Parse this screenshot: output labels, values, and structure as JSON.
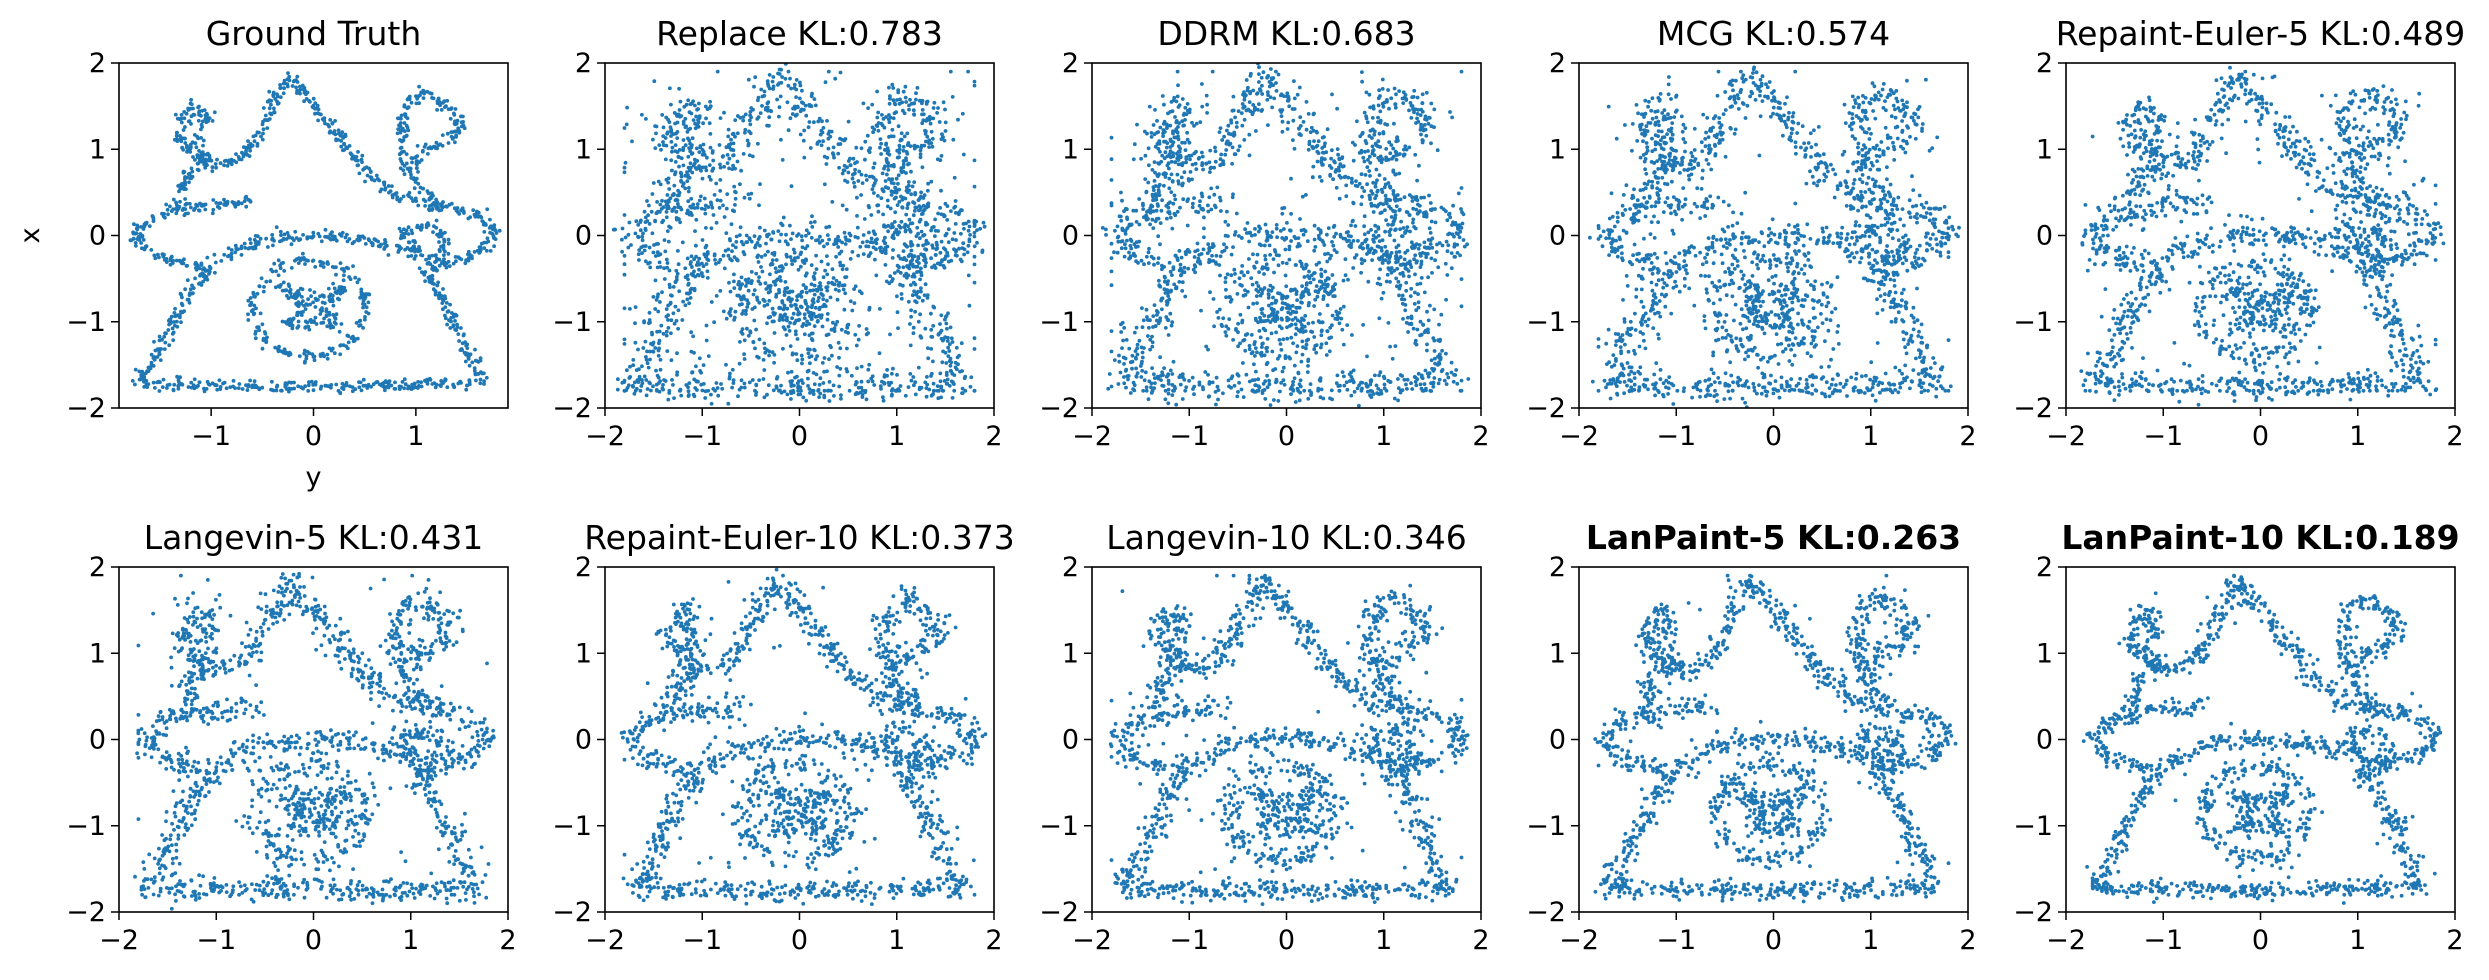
{
  "chart_data": [
    {
      "type": "scatter",
      "title": "Ground Truth",
      "kl": null,
      "bold": false,
      "xlabel": "y",
      "ylabel": "x",
      "xlim": [
        -1.9,
        1.9
      ],
      "ylim": [
        -2,
        2
      ],
      "xticks": [
        -1,
        0,
        1
      ],
      "yticks": [
        -2,
        -1,
        0,
        1,
        2
      ],
      "xtick_labels": [
        "−1",
        "0",
        "1"
      ],
      "ytick_labels": [
        "−2",
        "−1",
        "0",
        "1",
        "2"
      ],
      "noise": 0.0,
      "color": "#1f77b4"
    },
    {
      "type": "scatter",
      "title": "Replace  KL:0.783",
      "kl": 0.783,
      "bold": false,
      "xlabel": "",
      "ylabel": "",
      "xlim": [
        -2,
        2
      ],
      "ylim": [
        -2,
        2
      ],
      "xticks": [
        -2,
        -1,
        0,
        1,
        2
      ],
      "yticks": [
        -2,
        -1,
        0,
        1,
        2
      ],
      "xtick_labels": [
        "−2",
        "−1",
        "0",
        "1",
        "2"
      ],
      "ytick_labels": [
        "−2",
        "−1",
        "0",
        "1",
        "2"
      ],
      "noise": 0.78,
      "color": "#1f77b4"
    },
    {
      "type": "scatter",
      "title": "DDRM  KL:0.683",
      "kl": 0.683,
      "bold": false,
      "xlabel": "",
      "ylabel": "",
      "xlim": [
        -2,
        2
      ],
      "ylim": [
        -2,
        2
      ],
      "xticks": [
        -2,
        -1,
        0,
        1,
        2
      ],
      "yticks": [
        -2,
        -1,
        0,
        1,
        2
      ],
      "xtick_labels": [
        "−2",
        "−1",
        "0",
        "1",
        "2"
      ],
      "ytick_labels": [
        "−2",
        "−1",
        "0",
        "1",
        "2"
      ],
      "noise": 0.68,
      "color": "#1f77b4"
    },
    {
      "type": "scatter",
      "title": "MCG  KL:0.574",
      "kl": 0.574,
      "bold": false,
      "xlabel": "",
      "ylabel": "",
      "xlim": [
        -2,
        2
      ],
      "ylim": [
        -2,
        2
      ],
      "xticks": [
        -2,
        -1,
        0,
        1,
        2
      ],
      "yticks": [
        -2,
        -1,
        0,
        1,
        2
      ],
      "xtick_labels": [
        "−2",
        "−1",
        "0",
        "1",
        "2"
      ],
      "ytick_labels": [
        "−2",
        "−1",
        "0",
        "1",
        "2"
      ],
      "noise": 0.57,
      "color": "#1f77b4"
    },
    {
      "type": "scatter",
      "title": "Repaint-Euler-5  KL:0.489",
      "kl": 0.489,
      "bold": false,
      "xlabel": "",
      "ylabel": "",
      "xlim": [
        -2,
        2
      ],
      "ylim": [
        -2,
        2
      ],
      "xticks": [
        -2,
        -1,
        0,
        1,
        2
      ],
      "yticks": [
        -2,
        -1,
        0,
        1,
        2
      ],
      "xtick_labels": [
        "−2",
        "−1",
        "0",
        "1",
        "2"
      ],
      "ytick_labels": [
        "−2",
        "−1",
        "0",
        "1",
        "2"
      ],
      "noise": 0.49,
      "color": "#1f77b4"
    },
    {
      "type": "scatter",
      "title": "Langevin-5  KL:0.431",
      "kl": 0.431,
      "bold": false,
      "xlabel": "",
      "ylabel": "",
      "xlim": [
        -2,
        2
      ],
      "ylim": [
        -2,
        2
      ],
      "xticks": [
        -2,
        -1,
        0,
        1,
        2
      ],
      "yticks": [
        -2,
        -1,
        0,
        1,
        2
      ],
      "xtick_labels": [
        "−2",
        "−1",
        "0",
        "1",
        "2"
      ],
      "ytick_labels": [
        "−2",
        "−1",
        "0",
        "1",
        "2"
      ],
      "noise": 0.43,
      "color": "#1f77b4"
    },
    {
      "type": "scatter",
      "title": "Repaint-Euler-10  KL:0.373",
      "kl": 0.373,
      "bold": false,
      "xlabel": "",
      "ylabel": "",
      "xlim": [
        -2,
        2
      ],
      "ylim": [
        -2,
        2
      ],
      "xticks": [
        -2,
        -1,
        0,
        1,
        2
      ],
      "yticks": [
        -2,
        -1,
        0,
        1,
        2
      ],
      "xtick_labels": [
        "−2",
        "−1",
        "0",
        "1",
        "2"
      ],
      "ytick_labels": [
        "−2",
        "−1",
        "0",
        "1",
        "2"
      ],
      "noise": 0.37,
      "color": "#1f77b4"
    },
    {
      "type": "scatter",
      "title": "Langevin-10  KL:0.346",
      "kl": 0.346,
      "bold": false,
      "xlabel": "",
      "ylabel": "",
      "xlim": [
        -2,
        2
      ],
      "ylim": [
        -2,
        2
      ],
      "xticks": [
        -2,
        -1,
        0,
        1,
        2
      ],
      "yticks": [
        -2,
        -1,
        0,
        1,
        2
      ],
      "xtick_labels": [
        "−2",
        "−1",
        "0",
        "1",
        "2"
      ],
      "ytick_labels": [
        "−2",
        "−1",
        "0",
        "1",
        "2"
      ],
      "noise": 0.35,
      "color": "#1f77b4"
    },
    {
      "type": "scatter",
      "title": "LanPaint-5  KL:0.263",
      "kl": 0.263,
      "bold": true,
      "xlabel": "",
      "ylabel": "",
      "xlim": [
        -2,
        2
      ],
      "ylim": [
        -2,
        2
      ],
      "xticks": [
        -2,
        -1,
        0,
        1,
        2
      ],
      "yticks": [
        -2,
        -1,
        0,
        1,
        2
      ],
      "xtick_labels": [
        "−2",
        "−1",
        "0",
        "1",
        "2"
      ],
      "ytick_labels": [
        "−2",
        "−1",
        "0",
        "1",
        "2"
      ],
      "noise": 0.26,
      "color": "#1f77b4"
    },
    {
      "type": "scatter",
      "title": "LanPaint-10  KL:0.189",
      "kl": 0.189,
      "bold": true,
      "xlabel": "",
      "ylabel": "",
      "xlim": [
        -2,
        2
      ],
      "ylim": [
        -2,
        2
      ],
      "xticks": [
        -2,
        -1,
        0,
        1,
        2
      ],
      "yticks": [
        -2,
        -1,
        0,
        1,
        2
      ],
      "xtick_labels": [
        "−2",
        "−1",
        "0",
        "1",
        "2"
      ],
      "ytick_labels": [
        "−2",
        "−1",
        "0",
        "1",
        "2"
      ],
      "noise": 0.19,
      "color": "#1f77b4"
    }
  ],
  "shape": {
    "description_units": "data units (x = horizontal 'y' axis, y = vertical 'x' axis)",
    "strokes": [
      [
        [
          -1.7,
          -1.72
        ],
        [
          -0.8,
          -1.74
        ],
        [
          0.0,
          -1.75
        ],
        [
          0.8,
          -1.74
        ],
        [
          1.65,
          -1.72
        ]
      ],
      [
        [
          -1.7,
          -1.72
        ],
        [
          -1.45,
          -1.2
        ],
        [
          -1.2,
          -0.6
        ],
        [
          -1.0,
          -0.4
        ],
        [
          -1.3,
          -0.3
        ],
        [
          -1.6,
          -0.2
        ],
        [
          -1.75,
          0.0
        ],
        [
          -1.5,
          0.25
        ],
        [
          -1.0,
          0.35
        ],
        [
          -0.6,
          0.4
        ]
      ],
      [
        [
          1.65,
          -1.72
        ],
        [
          1.45,
          -1.2
        ],
        [
          1.2,
          -0.6
        ],
        [
          1.05,
          -0.4
        ],
        [
          1.35,
          -0.3
        ],
        [
          1.65,
          -0.15
        ],
        [
          1.8,
          0.05
        ],
        [
          1.6,
          0.25
        ],
        [
          1.2,
          0.35
        ]
      ],
      [
        [
          -1.0,
          -0.3
        ],
        [
          -0.5,
          -0.05
        ],
        [
          0.0,
          0.0
        ],
        [
          0.5,
          -0.05
        ],
        [
          1.0,
          -0.2
        ]
      ],
      [
        [
          -1.35,
          0.3
        ],
        [
          -1.25,
          0.7
        ],
        [
          -1.05,
          0.85
        ],
        [
          -0.9,
          0.8
        ],
        [
          -0.65,
          0.95
        ],
        [
          -0.4,
          1.5
        ],
        [
          -0.25,
          1.85
        ],
        [
          -0.1,
          1.65
        ],
        [
          0.25,
          1.15
        ],
        [
          0.55,
          0.7
        ],
        [
          0.85,
          0.45
        ],
        [
          1.2,
          0.35
        ]
      ],
      [
        [
          -1.05,
          0.85
        ],
        [
          -1.25,
          1.0
        ],
        [
          -1.35,
          1.2
        ],
        [
          -1.2,
          1.5
        ],
        [
          -1.05,
          1.4
        ],
        [
          -1.15,
          1.1
        ],
        [
          -1.05,
          0.85
        ]
      ],
      [
        [
          1.2,
          0.35
        ],
        [
          0.95,
          0.7
        ],
        [
          0.85,
          1.05
        ],
        [
          0.9,
          1.5
        ],
        [
          1.1,
          1.65
        ],
        [
          1.3,
          1.5
        ],
        [
          1.45,
          1.25
        ],
        [
          1.25,
          1.05
        ],
        [
          1.05,
          1.0
        ],
        [
          1.0,
          0.8
        ]
      ],
      [
        [
          0.9,
          0.05
        ],
        [
          0.95,
          -0.1
        ],
        [
          1.1,
          -0.3
        ],
        [
          1.3,
          -0.2
        ],
        [
          1.25,
          0.05
        ],
        [
          1.05,
          0.1
        ],
        [
          0.9,
          0.05
        ]
      ]
    ],
    "face_ellipse": {
      "cx": -0.05,
      "cy": -0.85,
      "rx": 0.55,
      "ry": 0.55
    },
    "inner_shape": [
      [
        -0.3,
        -0.6
      ],
      [
        0.0,
        -0.75
      ],
      [
        0.3,
        -0.6
      ],
      [
        0.1,
        -0.85
      ],
      [
        0.25,
        -1.05
      ],
      [
        0.0,
        -1.0
      ],
      [
        -0.25,
        -1.05
      ],
      [
        -0.1,
        -0.85
      ],
      [
        -0.3,
        -0.6
      ]
    ]
  }
}
